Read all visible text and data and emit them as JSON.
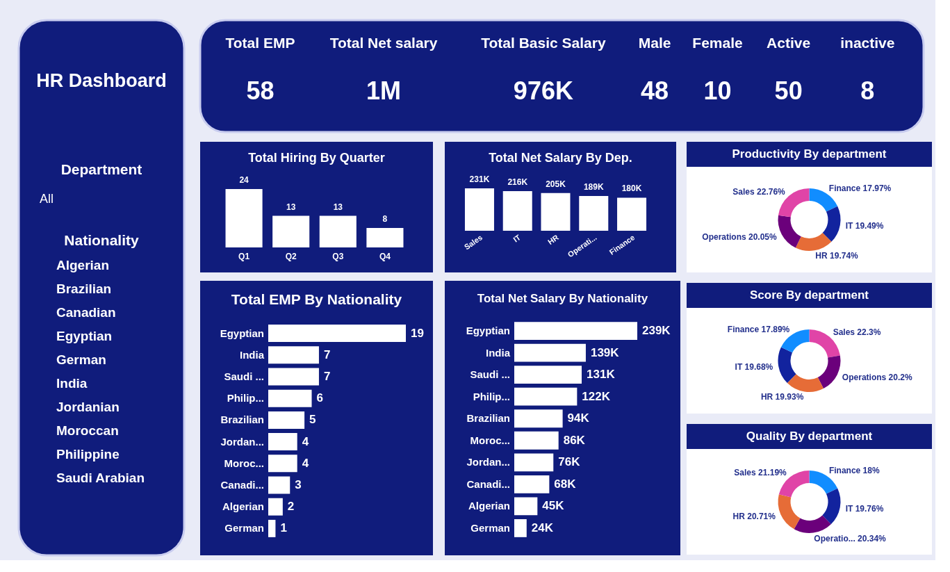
{
  "chart_data": [
    {
      "type": "other",
      "title": "HR Dashboard",
      "annotations": [
        "Department",
        "All",
        "Nationality"
      ],
      "categories": [
        "Algerian",
        "Brazilian",
        "Canadian",
        "Egyptian",
        "German",
        "India",
        "Jordanian",
        "Moroccan",
        "Philippine",
        "Saudi Arabian"
      ]
    },
    {
      "type": "other",
      "categories": [
        "Total EMP",
        "Total Net salary",
        "Total Basic Salary",
        "Male",
        "Female",
        "Active",
        "inactive"
      ],
      "values": [
        58,
        1000000,
        976000,
        48,
        10,
        50,
        8
      ],
      "value_labels": [
        "58",
        "1M",
        "976K",
        "48",
        "10",
        "50",
        "8"
      ]
    },
    {
      "type": "bar",
      "title": "Total Hiring By Quarter",
      "categories": [
        "Q1",
        "Q2",
        "Q3",
        "Q4"
      ],
      "values": [
        24,
        13,
        13,
        8
      ],
      "color": "#ffffff",
      "data_labels": true,
      "tick_labels": "x"
    },
    {
      "type": "bar",
      "title": "Total Net Salary By Dep.",
      "categories": [
        "Sales",
        "IT",
        "HR",
        "Operati...",
        "Finance"
      ],
      "values": [
        231,
        216,
        205,
        189,
        180
      ],
      "value_labels": [
        "231K",
        "216K",
        "205K",
        "189K",
        "180K"
      ],
      "color": "#ffffff",
      "tick_labels": "x"
    },
    {
      "type": "donut",
      "title": "Productivity By department",
      "categories": [
        "Finance",
        "IT",
        "HR",
        "Operations",
        "Sales"
      ],
      "values": [
        17.97,
        19.49,
        19.74,
        20.05,
        22.76
      ],
      "value_labels": [
        "17.97%",
        "19.49%",
        "19.74%",
        "20.05%",
        "22.76%"
      ],
      "colors": [
        "#118dff",
        "#12239e",
        "#e66c37",
        "#6b007b",
        "#e044a7"
      ]
    },
    {
      "type": "bar",
      "orientation": "horizontal",
      "title": "Total EMP By Nationality",
      "categories": [
        "Egyptian",
        "India",
        "Saudi ...",
        "Philip...",
        "Brazilian",
        "Jordan...",
        "Moroc...",
        "Canadi...",
        "Algerian",
        "German"
      ],
      "values": [
        19,
        7,
        7,
        6,
        5,
        4,
        4,
        3,
        2,
        1
      ],
      "color": "#ffffff",
      "data_labels": true,
      "tick_labels": "y"
    },
    {
      "type": "bar",
      "orientation": "horizontal",
      "title": "Total Net Salary By Nationality",
      "categories": [
        "Egyptian",
        "India",
        "Saudi ...",
        "Philip...",
        "Brazilian",
        "Moroc...",
        "Jordan...",
        "Canadi...",
        "Algerian",
        "German"
      ],
      "values": [
        239,
        139,
        131,
        122,
        94,
        86,
        76,
        68,
        45,
        24
      ],
      "value_labels": [
        "239K",
        "139K",
        "131K",
        "122K",
        "94K",
        "86K",
        "76K",
        "68K",
        "45K",
        "24K"
      ],
      "color": "#ffffff",
      "tick_labels": "y"
    },
    {
      "type": "donut",
      "title": "Score By department",
      "categories": [
        "Sales",
        "Operations",
        "HR",
        "IT",
        "Finance"
      ],
      "values": [
        22.3,
        20.2,
        19.93,
        19.68,
        17.89
      ],
      "value_labels": [
        "22.3%",
        "20.2%",
        "19.93%",
        "19.68%",
        "17.89%"
      ],
      "colors": [
        "#e044a7",
        "#6b007b",
        "#e66c37",
        "#12239e",
        "#118dff"
      ]
    },
    {
      "type": "donut",
      "title": "Quality By department",
      "categories": [
        "Finance",
        "IT",
        "Operatio...",
        "HR",
        "Sales"
      ],
      "values": [
        18,
        19.76,
        20.34,
        20.71,
        21.19
      ],
      "value_labels": [
        "18%",
        "19.76%",
        "20.34%",
        "20.71%",
        "21.19%"
      ],
      "colors": [
        "#118dff",
        "#12239e",
        "#6b007b",
        "#e66c37",
        "#e044a7"
      ]
    }
  ]
}
